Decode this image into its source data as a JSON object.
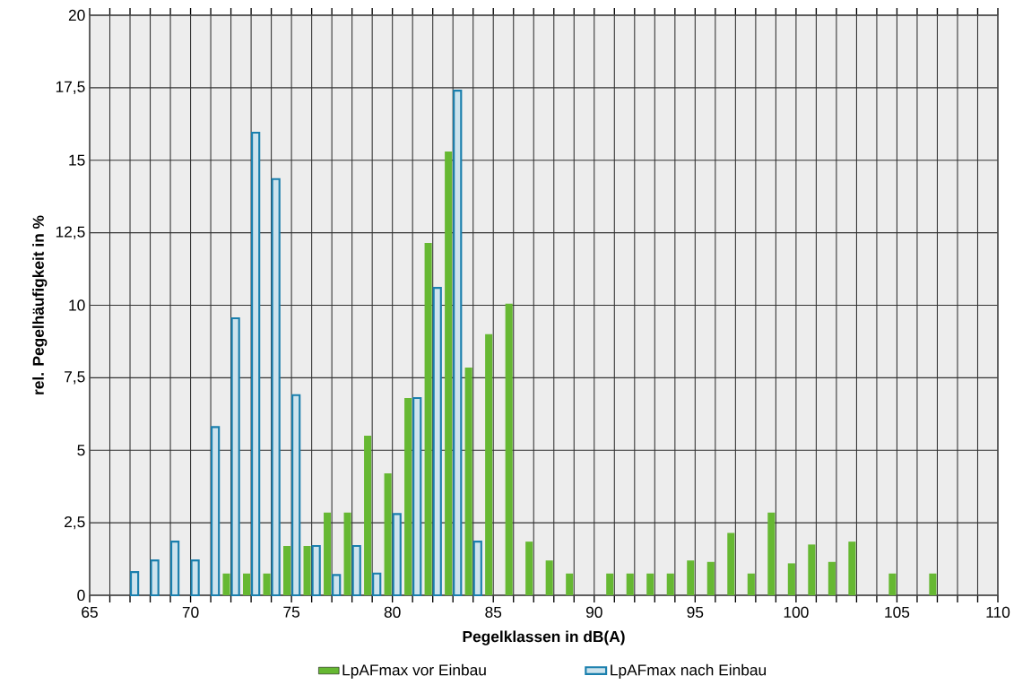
{
  "chart_data": {
    "type": "bar",
    "xlabel": "Pegelklassen in dB(A)",
    "ylabel": "rel. Pegelhäufigkeit in %",
    "x": [
      67,
      68,
      69,
      70,
      71,
      72,
      73,
      74,
      75,
      76,
      77,
      78,
      79,
      80,
      81,
      82,
      83,
      84,
      85,
      86,
      87,
      88,
      89,
      90,
      91,
      92,
      93,
      94,
      95,
      96,
      97,
      98,
      99,
      100,
      101,
      102,
      103,
      104,
      105,
      106,
      107
    ],
    "series": [
      {
        "name": "LpAFmax vor Einbau",
        "color": "#66b832",
        "values": [
          null,
          null,
          null,
          null,
          null,
          0.75,
          0.75,
          0.75,
          1.7,
          1.7,
          2.85,
          2.85,
          5.5,
          4.2,
          6.8,
          12.15,
          15.3,
          7.85,
          9.0,
          10.05,
          1.85,
          1.2,
          0.75,
          null,
          0.75,
          0.75,
          0.75,
          0.75,
          1.2,
          1.15,
          2.15,
          0.75,
          2.85,
          1.1,
          1.75,
          1.15,
          1.85,
          null,
          0.75,
          null,
          0.75
        ]
      },
      {
        "name": "LpAFmax nach Einbau",
        "color": "#1a7fad",
        "values": [
          0.8,
          1.2,
          1.85,
          1.2,
          5.8,
          9.55,
          15.95,
          14.35,
          6.9,
          1.7,
          0.7,
          1.7,
          0.75,
          2.8,
          6.8,
          10.6,
          17.4,
          1.85,
          null,
          null,
          null,
          null,
          null,
          null,
          null,
          null,
          null,
          null,
          null,
          null,
          null,
          null,
          null,
          null,
          null,
          null,
          null,
          null,
          null,
          null,
          null
        ]
      }
    ],
    "xlim": [
      65,
      110
    ],
    "xticks": [
      65,
      {
        "value": 66,
        "label": null
      },
      {
        "value": 67,
        "label": null
      },
      {
        "value": 68,
        "label": null
      },
      {
        "value": 69,
        "label": null
      },
      70,
      {
        "value": 71,
        "label": null
      },
      {
        "value": 72,
        "label": null
      },
      {
        "value": 73,
        "label": null
      },
      {
        "value": 74,
        "label": null
      },
      75,
      {
        "value": 76,
        "label": null
      },
      {
        "value": 77,
        "label": null
      },
      {
        "value": 78,
        "label": null
      },
      {
        "value": 79,
        "label": null
      },
      80,
      {
        "value": 81,
        "label": null
      },
      {
        "value": 82,
        "label": null
      },
      {
        "value": 83,
        "label": null
      },
      {
        "value": 84,
        "label": null
      },
      85,
      {
        "value": 86,
        "label": null
      },
      {
        "value": 87,
        "label": null
      },
      {
        "value": 88,
        "label": null
      },
      {
        "value": 89,
        "label": null
      },
      90,
      {
        "value": 91,
        "label": null
      },
      {
        "value": 92,
        "label": null
      },
      {
        "value": 93,
        "label": null
      },
      {
        "value": 94,
        "label": null
      },
      95,
      {
        "value": 96,
        "label": null
      },
      {
        "value": 97,
        "label": null
      },
      {
        "value": 98,
        "label": null
      },
      {
        "value": 99,
        "label": null
      },
      100,
      {
        "value": 101,
        "label": null
      },
      {
        "value": 102,
        "label": null
      },
      {
        "value": 103,
        "label": null
      },
      {
        "value": 104,
        "label": null
      },
      105,
      {
        "value": 106,
        "label": null
      },
      {
        "value": 107,
        "label": null
      },
      {
        "value": 108,
        "label": null
      },
      {
        "value": 109,
        "label": null
      },
      110
    ],
    "ylim": [
      0,
      20
    ],
    "yticks": [
      0,
      {
        "value": 2.5,
        "label": "2,5"
      },
      5,
      {
        "value": 7.5,
        "label": "7,5"
      },
      10,
      {
        "value": 12.5,
        "label": "12,5"
      },
      15,
      {
        "value": 17.5,
        "label": "17,5"
      },
      20
    ],
    "grid": true,
    "legend": "bottom"
  }
}
